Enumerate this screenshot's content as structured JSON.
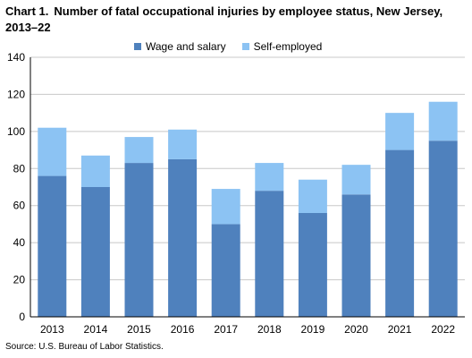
{
  "title": {
    "lead": "Chart 1.",
    "text": "Number of fatal occupational injuries by employee status, New Jersey, 2013–22"
  },
  "source": "Source: U.S. Bureau of Labor Statistics.",
  "colors": {
    "wage": "#4F81BD",
    "self": "#8CC3F3",
    "grid": "#c8c8c8",
    "axis": "#000000"
  },
  "chart_data": {
    "type": "bar",
    "stacked": true,
    "categories": [
      "2013",
      "2014",
      "2015",
      "2016",
      "2017",
      "2018",
      "2019",
      "2020",
      "2021",
      "2022"
    ],
    "series": [
      {
        "name": "Wage and salary",
        "values": [
          76,
          70,
          83,
          85,
          50,
          68,
          56,
          66,
          90,
          95
        ]
      },
      {
        "name": "Self-employed",
        "values": [
          26,
          17,
          14,
          16,
          19,
          15,
          18,
          16,
          20,
          21
        ]
      }
    ],
    "ylim": [
      0,
      140
    ],
    "yticks": [
      "0",
      "20",
      "40",
      "60",
      "80",
      "100",
      "120",
      "140"
    ],
    "grid": true,
    "legend": "top"
  }
}
